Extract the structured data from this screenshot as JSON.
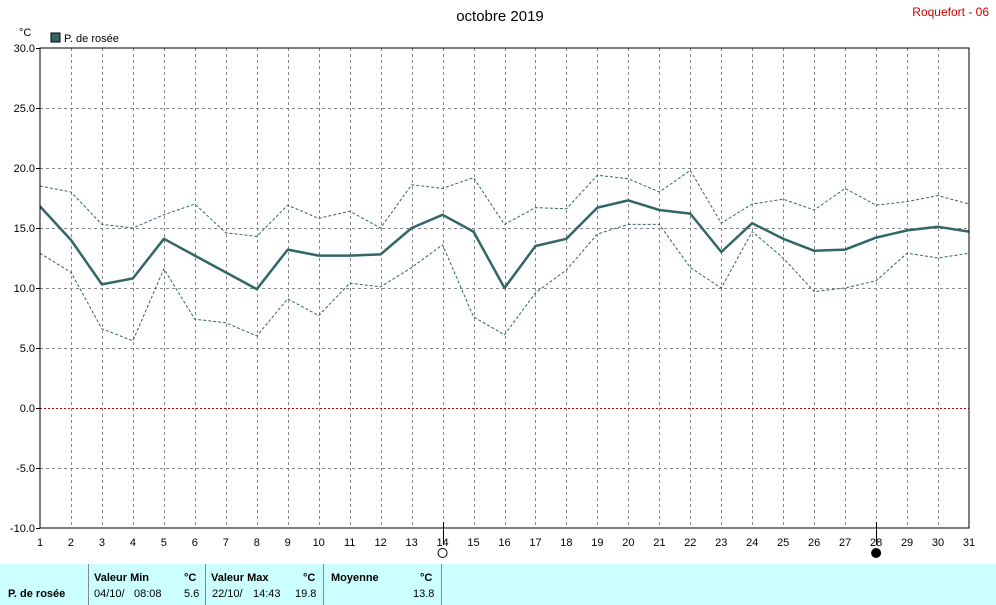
{
  "header": {
    "title": "octobre 2019",
    "station": "Roquefort - 06",
    "unit": "°C"
  },
  "legend": {
    "label": "P. de rosée",
    "color": "#336666"
  },
  "chart_data": {
    "type": "line",
    "x": [
      1,
      2,
      3,
      4,
      5,
      6,
      7,
      8,
      9,
      10,
      11,
      12,
      13,
      14,
      15,
      16,
      17,
      18,
      19,
      20,
      21,
      22,
      23,
      24,
      25,
      26,
      27,
      28,
      29,
      30,
      31
    ],
    "xlim": [
      1,
      31
    ],
    "ylim": [
      -10,
      30
    ],
    "yticks": [
      "30.0",
      "25.0",
      "20.0",
      "15.0",
      "10.0",
      "5.0",
      "0.0",
      "-5.0",
      "-10.0"
    ],
    "grid": true,
    "legend_position": "top-left",
    "series": [
      {
        "name": "P. de rosée",
        "style": "solid",
        "color": "#336666",
        "values": [
          16.8,
          14.0,
          10.3,
          10.8,
          14.1,
          12.7,
          11.3,
          9.9,
          13.2,
          12.7,
          12.7,
          12.8,
          15.0,
          16.1,
          14.7,
          10.0,
          13.5,
          14.1,
          16.7,
          17.3,
          16.5,
          16.2,
          13.0,
          15.4,
          14.1,
          13.1,
          13.2,
          14.2,
          14.8,
          15.1,
          14.7
        ]
      },
      {
        "style": "dashed",
        "color": "#336666",
        "values": [
          18.5,
          18.0,
          15.3,
          15.0,
          16.1,
          17.0,
          14.6,
          14.3,
          16.9,
          15.8,
          16.4,
          15.0,
          18.6,
          18.3,
          19.2,
          15.3,
          16.7,
          16.6,
          19.4,
          19.1,
          18.0,
          19.8,
          15.4,
          17.0,
          17.4,
          16.5,
          18.3,
          16.9,
          17.2,
          17.7,
          17.0
        ]
      },
      {
        "style": "dashed",
        "color": "#336666",
        "values": [
          12.9,
          11.3,
          6.6,
          5.6,
          11.6,
          7.4,
          7.1,
          6.0,
          9.1,
          7.7,
          10.4,
          10.1,
          11.7,
          13.6,
          7.6,
          6.1,
          9.6,
          11.5,
          14.5,
          15.3,
          15.3,
          11.7,
          10.0,
          14.7,
          12.5,
          9.7,
          10.0,
          10.6,
          12.9,
          12.5,
          12.9
        ]
      }
    ],
    "reference_line": {
      "y": 0.0,
      "color": "#cc0000",
      "style": "dotted"
    },
    "markers": [
      {
        "day": 14,
        "type": "open-circle"
      },
      {
        "day": 28,
        "type": "filled-circle"
      }
    ]
  },
  "stats": {
    "param_label": "P. de rosée",
    "min_label": "Valeur Min",
    "min_unit": "°C",
    "min_date": "04/10/",
    "min_time": "08:08",
    "min_value": "5.6",
    "max_label": "Valeur Max",
    "max_unit": "°C",
    "max_date": "22/10/",
    "max_time": "14:43",
    "max_value": "19.8",
    "avg_label": "Moyenne",
    "avg_unit": "°C",
    "avg_value": "13.8"
  }
}
